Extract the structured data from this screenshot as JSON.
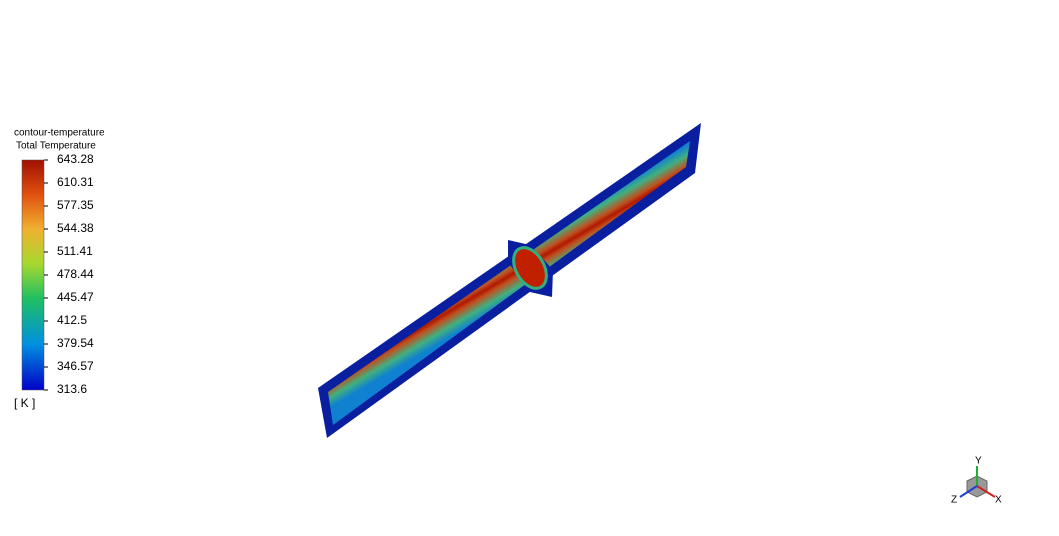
{
  "legend": {
    "title": "contour-temperature",
    "subtitle": "Total Temperature",
    "ticks": [
      643.28,
      610.31,
      577.35,
      544.38,
      511.41,
      478.44,
      445.47,
      412.5,
      379.54,
      346.57,
      313.6
    ],
    "unit": "[ K ]"
  },
  "triad": {
    "x": "X",
    "y": "Y",
    "z": "Z"
  }
}
